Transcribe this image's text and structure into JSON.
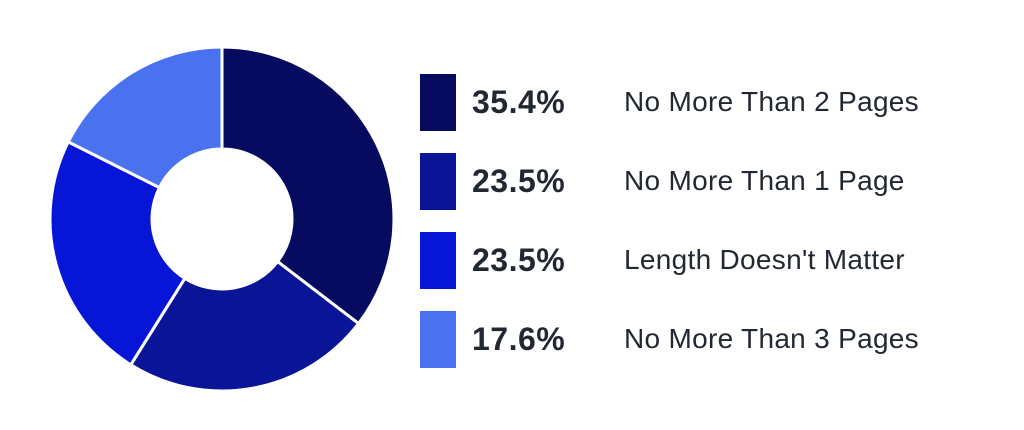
{
  "chart_data": {
    "type": "pie",
    "variant": "donut",
    "title": "",
    "slices": [
      {
        "label": "No More Than 2 Pages",
        "value": 35.4,
        "display": "35.4%",
        "color": "#060b60"
      },
      {
        "label": "No More Than 1 Page",
        "value": 23.5,
        "display": "23.5%",
        "color": "#0a1497"
      },
      {
        "label": "Length Doesn't Matter",
        "value": 23.5,
        "display": "23.5%",
        "color": "#0716d6"
      },
      {
        "label": "No More Than 3 Pages",
        "value": 17.6,
        "display": "17.6%",
        "color": "#4a72f0"
      }
    ],
    "legend_position": "right"
  }
}
